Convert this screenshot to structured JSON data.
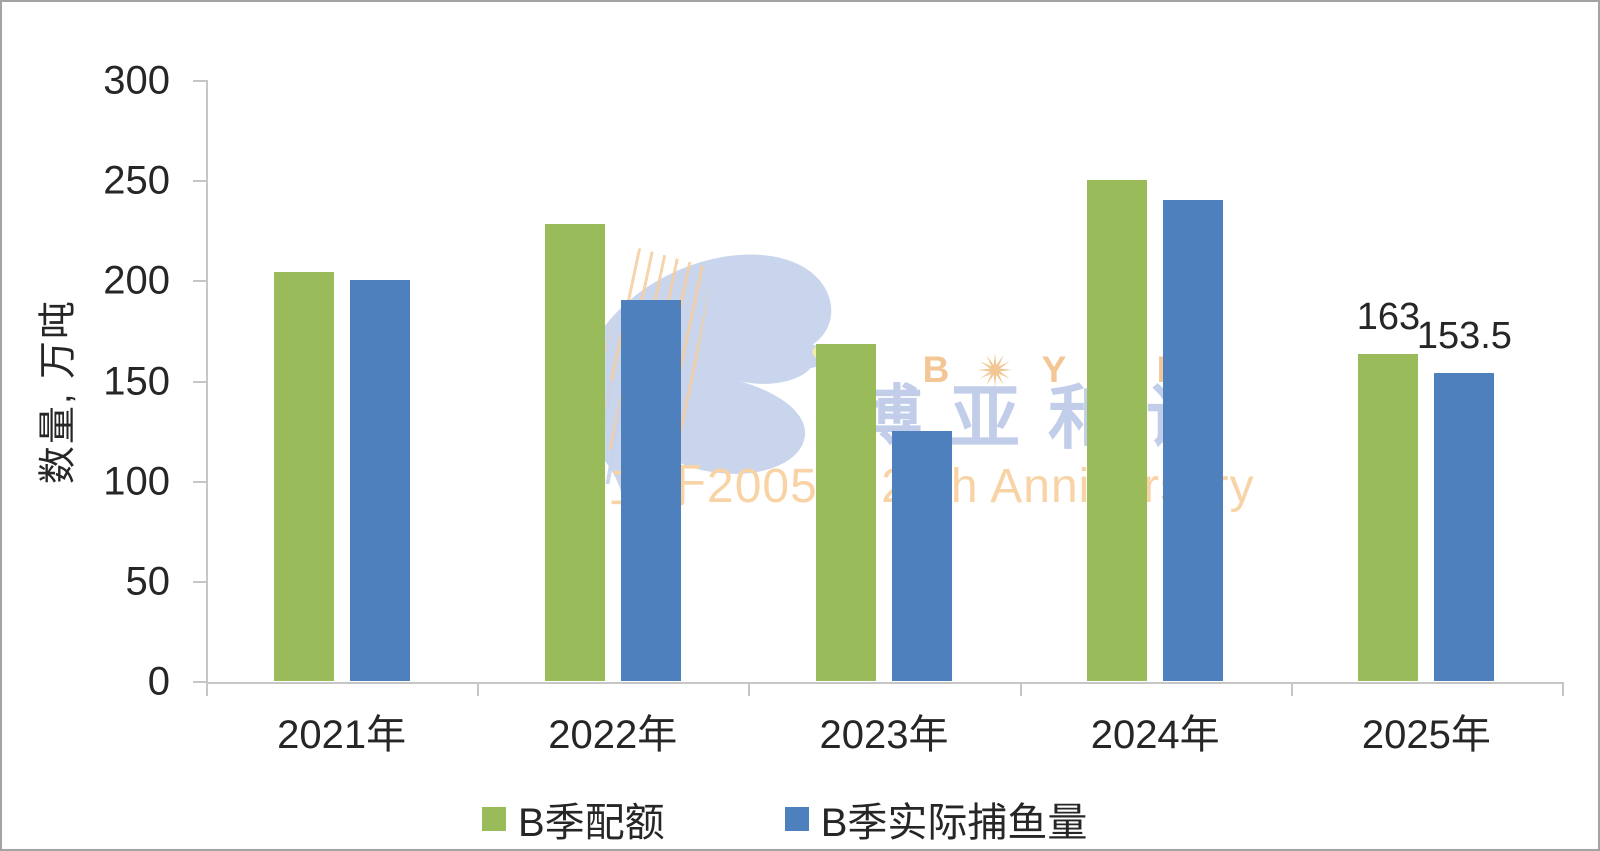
{
  "chart_data": {
    "type": "bar",
    "title": "",
    "categories": [
      "2021年",
      "2022年",
      "2023年",
      "2024年",
      "2025年"
    ],
    "series": [
      {
        "name": "B季配额",
        "color": "#9ABB59",
        "values": [
          204,
          228,
          168,
          250,
          163
        ]
      },
      {
        "name": "B季实际捕鱼量",
        "color": "#4E80BD",
        "values": [
          200,
          190,
          125,
          240,
          153.5
        ]
      }
    ],
    "data_labels": [
      {
        "category": "2025年",
        "series": "B季配额",
        "text": "163"
      },
      {
        "category": "2025年",
        "series": "B季实际捕鱼量",
        "text": "153.5"
      }
    ],
    "xlabel": "",
    "ylabel": "数量, 万吨",
    "ylim": [
      0,
      300
    ],
    "yticks": [
      0,
      50,
      100,
      150,
      200,
      250,
      300
    ],
    "grid": false,
    "legend_position": "bottom"
  },
  "watermark": {
    "brand_latin": "BOYAR",
    "brand_cjk": "博亚和讯",
    "tagline": "创立于2005年 20th Anniversary",
    "colors": {
      "bird": "#C7D3EB",
      "latin": "#F2C795",
      "cjk": "#C2CEE9",
      "tagline": "#F8D3A6",
      "eye": "#F2EFA0"
    }
  },
  "colors": {
    "text": "#262626",
    "axis": "#C6C6C6",
    "background": "#FFFFFF",
    "border": "#A3A3A3"
  }
}
